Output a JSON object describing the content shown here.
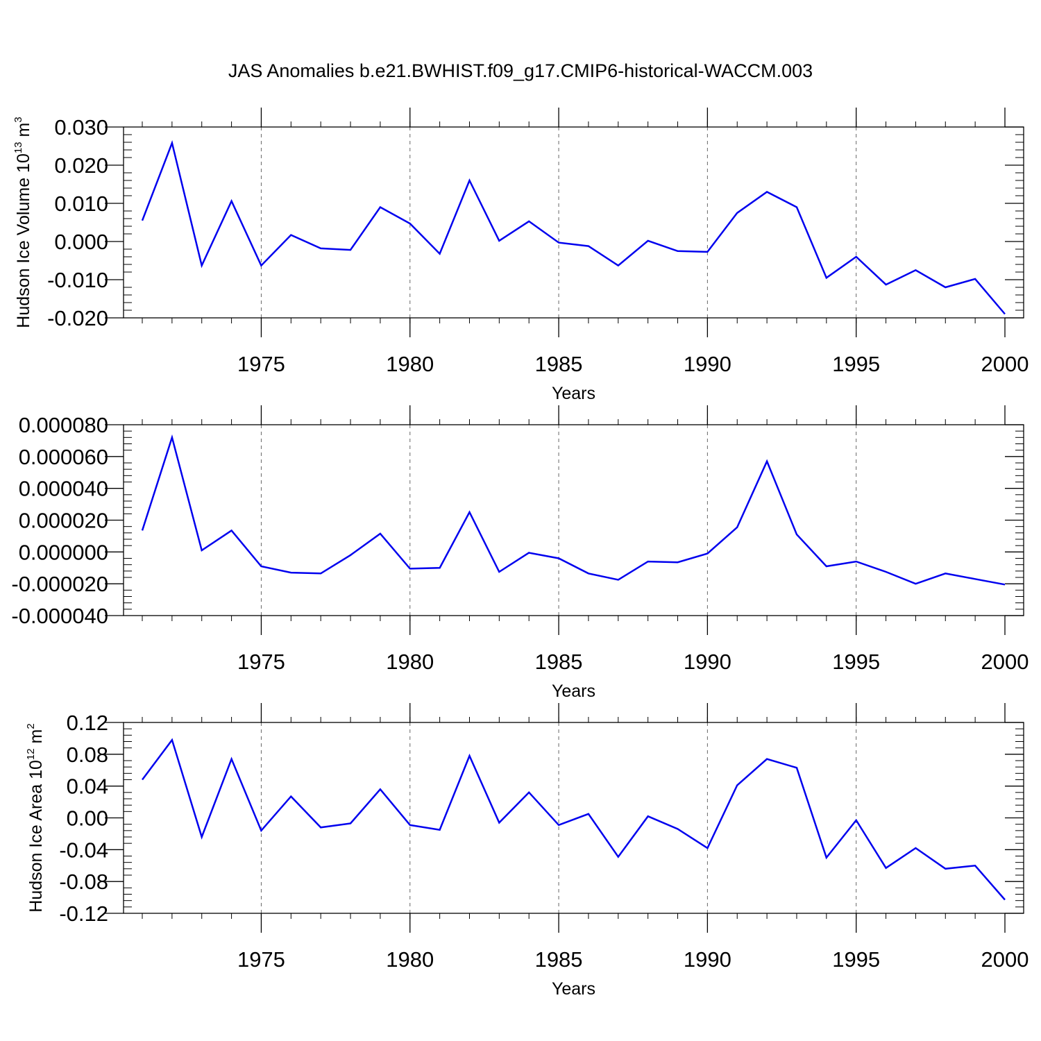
{
  "title": "JAS Anomalies b.e21.BWHIST.f09_g17.CMIP6-historical-WACCM.003",
  "chart_data": [
    {
      "type": "line",
      "ylabel": {
        "text": "Hudson Ice Volume 10",
        "sup": "13",
        "unit": " m",
        "unit_sup": "3"
      },
      "xlabel": "Years",
      "xlim": [
        1971,
        2000
      ],
      "ylim": [
        -0.02,
        0.03
      ],
      "xticks": [
        1975,
        1980,
        1985,
        1990,
        1995,
        2000
      ],
      "xtick_labels": [
        "1975",
        "1980",
        "1985",
        "1990",
        "1995",
        "2000"
      ],
      "yticks": [
        -0.02,
        -0.01,
        0.0,
        0.01,
        0.02,
        0.03
      ],
      "ytick_labels": [
        "-0.020",
        "-0.010",
        "0.000",
        "0.010",
        "0.020",
        "0.030"
      ],
      "grid": "vertical-dashed",
      "color": "#0000ee",
      "x": [
        1971,
        1972,
        1973,
        1974,
        1975,
        1976,
        1977,
        1978,
        1979,
        1980,
        1981,
        1982,
        1983,
        1984,
        1985,
        1986,
        1987,
        1988,
        1989,
        1990,
        1991,
        1992,
        1993,
        1994,
        1995,
        1996,
        1997,
        1998,
        1999,
        2000
      ],
      "values": [
        0.0055,
        0.0258,
        -0.0063,
        0.0106,
        -0.0063,
        0.0017,
        -0.0018,
        -0.0022,
        0.009,
        0.0047,
        -0.0032,
        0.016,
        0.0002,
        0.0053,
        -0.0003,
        -0.0012,
        -0.0063,
        0.0002,
        -0.0025,
        -0.0027,
        0.0075,
        0.013,
        0.009,
        -0.0095,
        -0.004,
        -0.0113,
        -0.0075,
        -0.012,
        -0.0098,
        -0.019
      ]
    },
    {
      "type": "line",
      "ylabel": null,
      "xlabel": "Years",
      "xlim": [
        1971,
        2000
      ],
      "ylim": [
        -4e-05,
        8e-05
      ],
      "xticks": [
        1975,
        1980,
        1985,
        1990,
        1995,
        2000
      ],
      "xtick_labels": [
        "1975",
        "1980",
        "1985",
        "1990",
        "1995",
        "2000"
      ],
      "yticks": [
        -4e-05,
        -2e-05,
        0.0,
        2e-05,
        4e-05,
        6e-05,
        8e-05
      ],
      "ytick_labels": [
        "-0.000040",
        "-0.000020",
        "0.000000",
        "0.000020",
        "0.000040",
        "0.000060",
        "0.000080"
      ],
      "grid": "vertical-dashed",
      "color": "#0000ee",
      "x": [
        1971,
        1972,
        1973,
        1974,
        1975,
        1976,
        1977,
        1978,
        1979,
        1980,
        1981,
        1982,
        1983,
        1984,
        1985,
        1986,
        1987,
        1988,
        1989,
        1990,
        1991,
        1992,
        1993,
        1994,
        1995,
        1996,
        1997,
        1998,
        1999,
        2000
      ],
      "values": [
        1.35e-05,
        7.2e-05,
        1e-06,
        1.35e-05,
        -9e-06,
        -1.3e-05,
        -1.35e-05,
        -2e-06,
        1.15e-05,
        -1.05e-05,
        -1e-05,
        2.5e-05,
        -1.25e-05,
        -5e-07,
        -4e-06,
        -1.35e-05,
        -1.75e-05,
        -6e-06,
        -6.5e-06,
        -1e-06,
        1.55e-05,
        5.7e-05,
        1.1e-05,
        -9e-06,
        -6e-06,
        -1.25e-05,
        -2e-05,
        -1.35e-05,
        -1.7e-05,
        -2.05e-05
      ]
    },
    {
      "type": "line",
      "ylabel": {
        "text": "Hudson Ice Area 10",
        "sup": "12",
        "unit": " m",
        "unit_sup": "2"
      },
      "xlabel": "Years",
      "xlim": [
        1971,
        2000
      ],
      "ylim": [
        -0.12,
        0.12
      ],
      "xticks": [
        1975,
        1980,
        1985,
        1990,
        1995,
        2000
      ],
      "xtick_labels": [
        "1975",
        "1980",
        "1985",
        "1990",
        "1995",
        "2000"
      ],
      "yticks": [
        -0.12,
        -0.08,
        -0.04,
        0.0,
        0.04,
        0.08,
        0.12
      ],
      "ytick_labels": [
        "-0.12",
        "-0.08",
        "-0.04",
        "0.00",
        "0.04",
        "0.08",
        "0.12"
      ],
      "grid": "vertical-dashed",
      "color": "#0000ee",
      "x": [
        1971,
        1972,
        1973,
        1974,
        1975,
        1976,
        1977,
        1978,
        1979,
        1980,
        1981,
        1982,
        1983,
        1984,
        1985,
        1986,
        1987,
        1988,
        1989,
        1990,
        1991,
        1992,
        1993,
        1994,
        1995,
        1996,
        1997,
        1998,
        1999,
        2000
      ],
      "values": [
        0.048,
        0.098,
        -0.024,
        0.074,
        -0.016,
        0.027,
        -0.012,
        -0.007,
        0.036,
        -0.009,
        -0.015,
        0.078,
        -0.006,
        0.032,
        -0.009,
        0.005,
        -0.049,
        0.002,
        -0.014,
        -0.038,
        0.041,
        0.074,
        0.063,
        -0.05,
        -0.003,
        -0.063,
        -0.038,
        -0.064,
        -0.06,
        -0.103
      ]
    }
  ]
}
